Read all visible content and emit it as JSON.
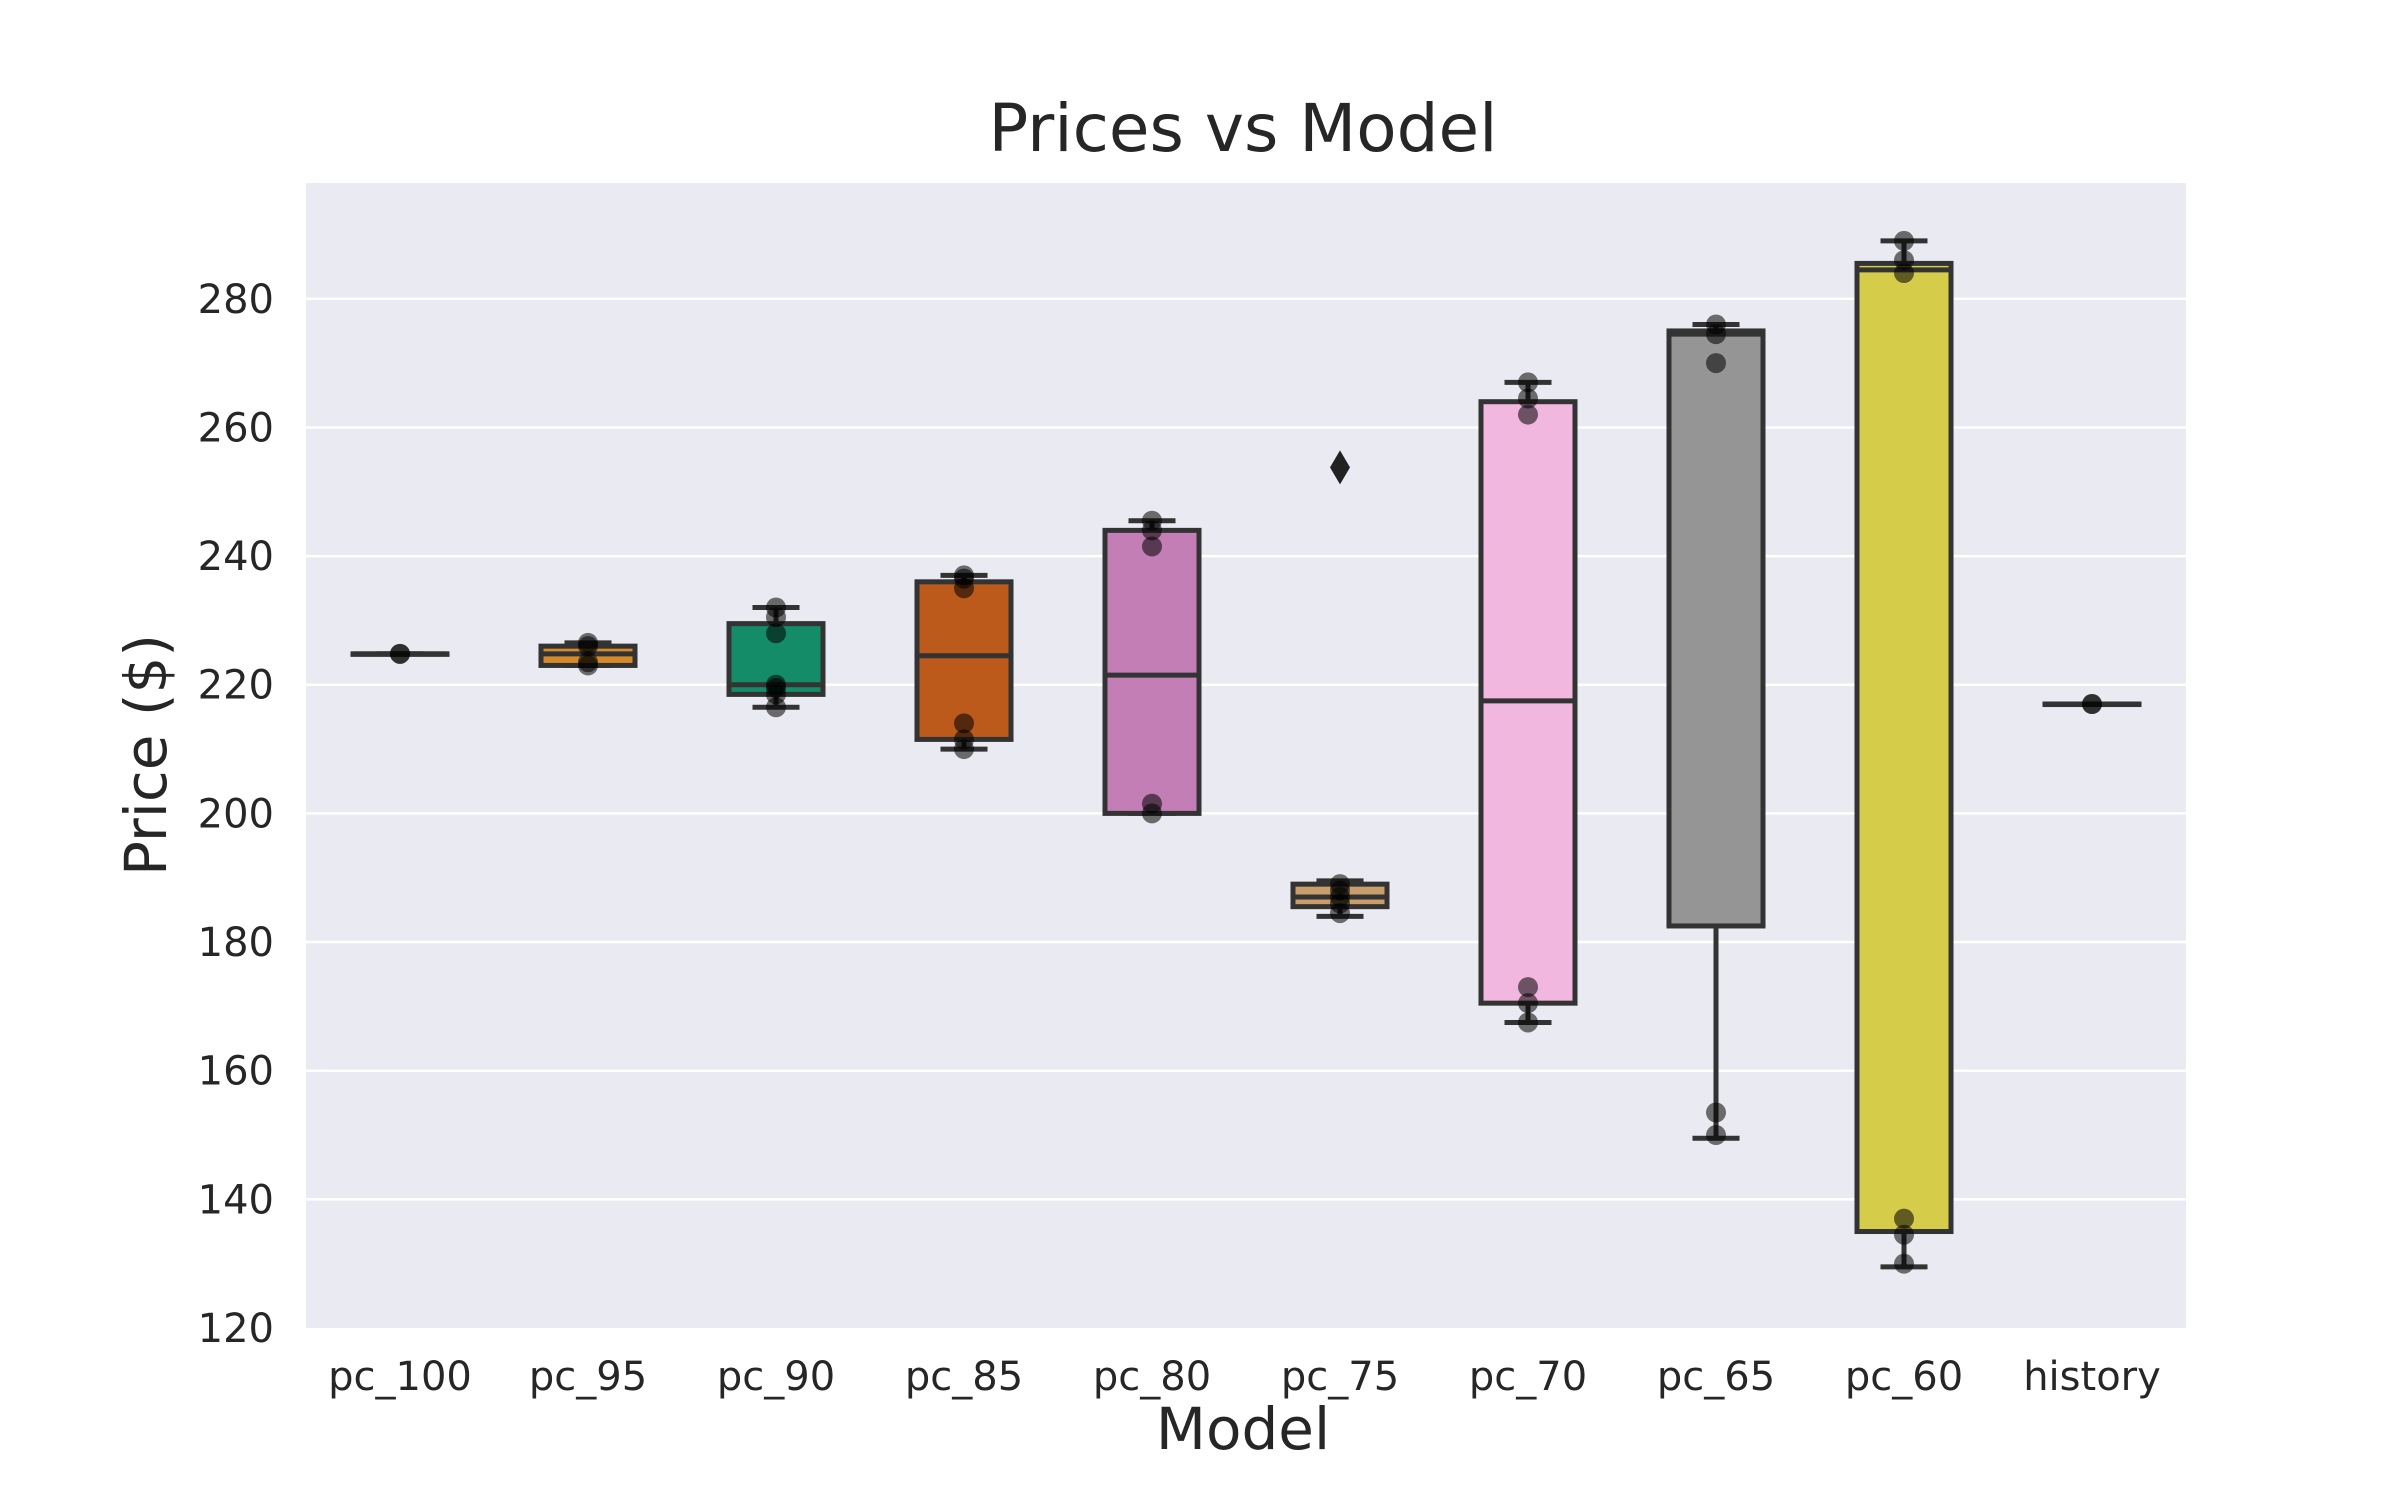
{
  "chart_data": {
    "type": "box",
    "title": "Prices vs Model",
    "xlabel": "Model",
    "ylabel": "Price ($)",
    "ylim": [
      120,
      298
    ],
    "yticks": [
      120,
      140,
      160,
      180,
      200,
      220,
      240,
      260,
      280
    ],
    "grid": true,
    "categories": [
      "pc_100",
      "pc_95",
      "pc_90",
      "pc_85",
      "pc_80",
      "pc_75",
      "pc_70",
      "pc_65",
      "pc_60",
      "history"
    ],
    "boxes": [
      {
        "min": 224.8,
        "q1": 224.8,
        "median": 224.8,
        "q3": 224.8,
        "max": 224.8,
        "color": "#333333"
      },
      {
        "min": 223.0,
        "q1": 223.0,
        "median": 224.8,
        "q3": 226.0,
        "max": 226.5,
        "color": "#d4892a"
      },
      {
        "min": 216.5,
        "q1": 218.5,
        "median": 220.0,
        "q3": 229.5,
        "max": 232.0,
        "color": "#148c67"
      },
      {
        "min": 210.0,
        "q1": 211.5,
        "median": 224.5,
        "q3": 236.0,
        "max": 237.0,
        "color": "#bb5a1b"
      },
      {
        "min": 200.0,
        "q1": 200.0,
        "median": 221.5,
        "q3": 244.0,
        "max": 245.5,
        "color": "#c37fb5"
      },
      {
        "min": 184.0,
        "q1": 185.5,
        "median": 187.0,
        "q3": 189.0,
        "max": 189.5,
        "color": "#c89e6d"
      },
      {
        "min": 167.5,
        "q1": 170.5,
        "median": 217.5,
        "q3": 264.0,
        "max": 267.0,
        "color": "#f1b7de"
      },
      {
        "min": 149.5,
        "q1": 182.5,
        "median": 274.5,
        "q3": 275.0,
        "max": 276.0,
        "color": "#959595"
      },
      {
        "min": 129.5,
        "q1": 135.0,
        "median": 284.5,
        "q3": 285.5,
        "max": 289.0,
        "color": "#d5cd4a"
      },
      {
        "min": 217.0,
        "q1": 217.0,
        "median": 217.0,
        "q3": 217.0,
        "max": 217.0,
        "color": "#333333"
      }
    ],
    "outliers": [
      {
        "category": "pc_75",
        "value": 253.8
      }
    ],
    "points": [
      {
        "category": "pc_100",
        "values": [
          224.8,
          224.8
        ]
      },
      {
        "category": "pc_95",
        "values": [
          223.0,
          223.5,
          226.0,
          226.5
        ]
      },
      {
        "category": "pc_90",
        "values": [
          216.5,
          218.5,
          219.5,
          220.0,
          228.0,
          230.5,
          232.0
        ]
      },
      {
        "category": "pc_85",
        "values": [
          210.0,
          211.5,
          214.0,
          235.0,
          236.5,
          237.0
        ]
      },
      {
        "category": "pc_80",
        "values": [
          200.0,
          201.5,
          241.5,
          244.0,
          245.5
        ]
      },
      {
        "category": "pc_75",
        "values": [
          184.5,
          186.0,
          187.0,
          188.0,
          189.0
        ]
      },
      {
        "category": "pc_70",
        "values": [
          167.5,
          170.5,
          173.0,
          262.0,
          264.5,
          267.0
        ]
      },
      {
        "category": "pc_65",
        "values": [
          150.0,
          153.5,
          270.0,
          274.5,
          276.0
        ]
      },
      {
        "category": "pc_60",
        "values": [
          130.0,
          134.5,
          137.0,
          284.0,
          286.0,
          289.0
        ]
      },
      {
        "category": "history",
        "values": [
          217.0,
          217.0
        ]
      }
    ]
  }
}
